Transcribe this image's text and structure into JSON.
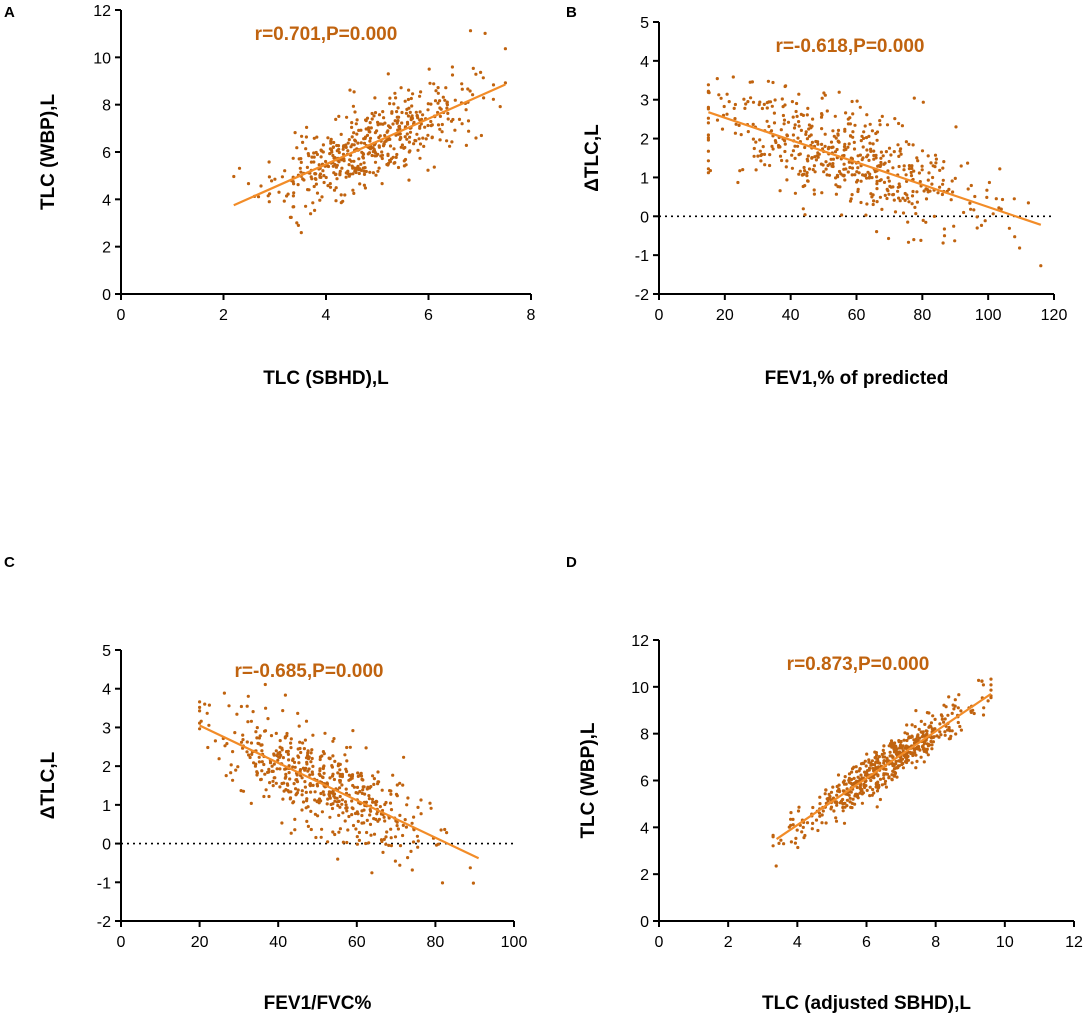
{
  "colors": {
    "points": "#c0630f",
    "fit": "#f28c28",
    "annotation": "#c0630f",
    "axis": "#000000"
  },
  "chart_data": [
    {
      "panel": "A",
      "type": "scatter",
      "xlabel": "TLC (SBHD),L",
      "ylabel": "TLC (WBP),L",
      "xlim": [
        0,
        8
      ],
      "ylim": [
        0,
        12
      ],
      "xticks": [
        0,
        2,
        4,
        6,
        8
      ],
      "yticks": [
        0,
        2,
        4,
        6,
        8,
        10,
        12
      ],
      "annotation": "r=0.701,P=0.000",
      "fit": {
        "x": [
          2.2,
          7.5
        ],
        "y": [
          3.75,
          8.85
        ]
      },
      "reference_zero_line": false,
      "cloud": {
        "n": 520,
        "x_mean": 4.85,
        "x_sd": 0.95,
        "x_range": [
          2.2,
          7.5
        ],
        "slope": 0.962,
        "intercept": 1.63,
        "resid_sd": 0.85,
        "seed": 11
      }
    },
    {
      "panel": "B",
      "type": "scatter",
      "xlabel": "FEV1,% of predicted",
      "ylabel": "ΔTLC,L",
      "xlim": [
        0,
        120
      ],
      "ylim": [
        -2,
        5
      ],
      "xticks": [
        0,
        20,
        40,
        60,
        80,
        100,
        120
      ],
      "yticks": [
        -2,
        -1,
        0,
        1,
        2,
        3,
        4,
        5
      ],
      "annotation": "r=-0.618,P=0.000",
      "fit": {
        "x": [
          15,
          116
        ],
        "y": [
          2.68,
          -0.22
        ]
      },
      "reference_zero_line": true,
      "cloud": {
        "n": 540,
        "x_mean": 55,
        "x_sd": 20,
        "x_range": [
          15,
          116
        ],
        "slope": -0.0287,
        "intercept": 3.11,
        "resid_sd": 0.65,
        "seed": 23
      }
    },
    {
      "panel": "C",
      "type": "scatter",
      "xlabel": "FEV1/FVC%",
      "ylabel": "ΔTLC,L",
      "xlim": [
        0,
        100
      ],
      "ylim": [
        -2,
        5
      ],
      "xticks": [
        0,
        20,
        40,
        60,
        80,
        100
      ],
      "yticks": [
        -2,
        -1,
        0,
        1,
        2,
        3,
        4,
        5
      ],
      "annotation": "r=-0.685,P=0.000",
      "fit": {
        "x": [
          20,
          91
        ],
        "y": [
          3.05,
          -0.38
        ]
      },
      "reference_zero_line": true,
      "cloud": {
        "n": 540,
        "x_mean": 52,
        "x_sd": 13,
        "x_range": [
          20,
          91
        ],
        "slope": -0.0483,
        "intercept": 4.02,
        "resid_sd": 0.6,
        "seed": 37
      }
    },
    {
      "panel": "D",
      "type": "scatter",
      "xlabel": "TLC (adjusted SBHD),L",
      "ylabel": "TLC (WBP),L",
      "xlim": [
        0,
        12
      ],
      "ylim": [
        0,
        12
      ],
      "xticks": [
        0,
        2,
        4,
        6,
        8,
        10,
        12
      ],
      "yticks": [
        0,
        2,
        4,
        6,
        8,
        10,
        12
      ],
      "annotation": "r=0.873,P=0.000",
      "fit": {
        "x": [
          3.4,
          9.6
        ],
        "y": [
          3.5,
          9.7
        ]
      },
      "reference_zero_line": false,
      "cloud": {
        "n": 560,
        "x_mean": 6.5,
        "x_sd": 1.25,
        "x_range": [
          3.3,
          9.6
        ],
        "slope": 1.0,
        "intercept": 0.1,
        "resid_sd": 0.45,
        "seed": 53
      }
    }
  ]
}
